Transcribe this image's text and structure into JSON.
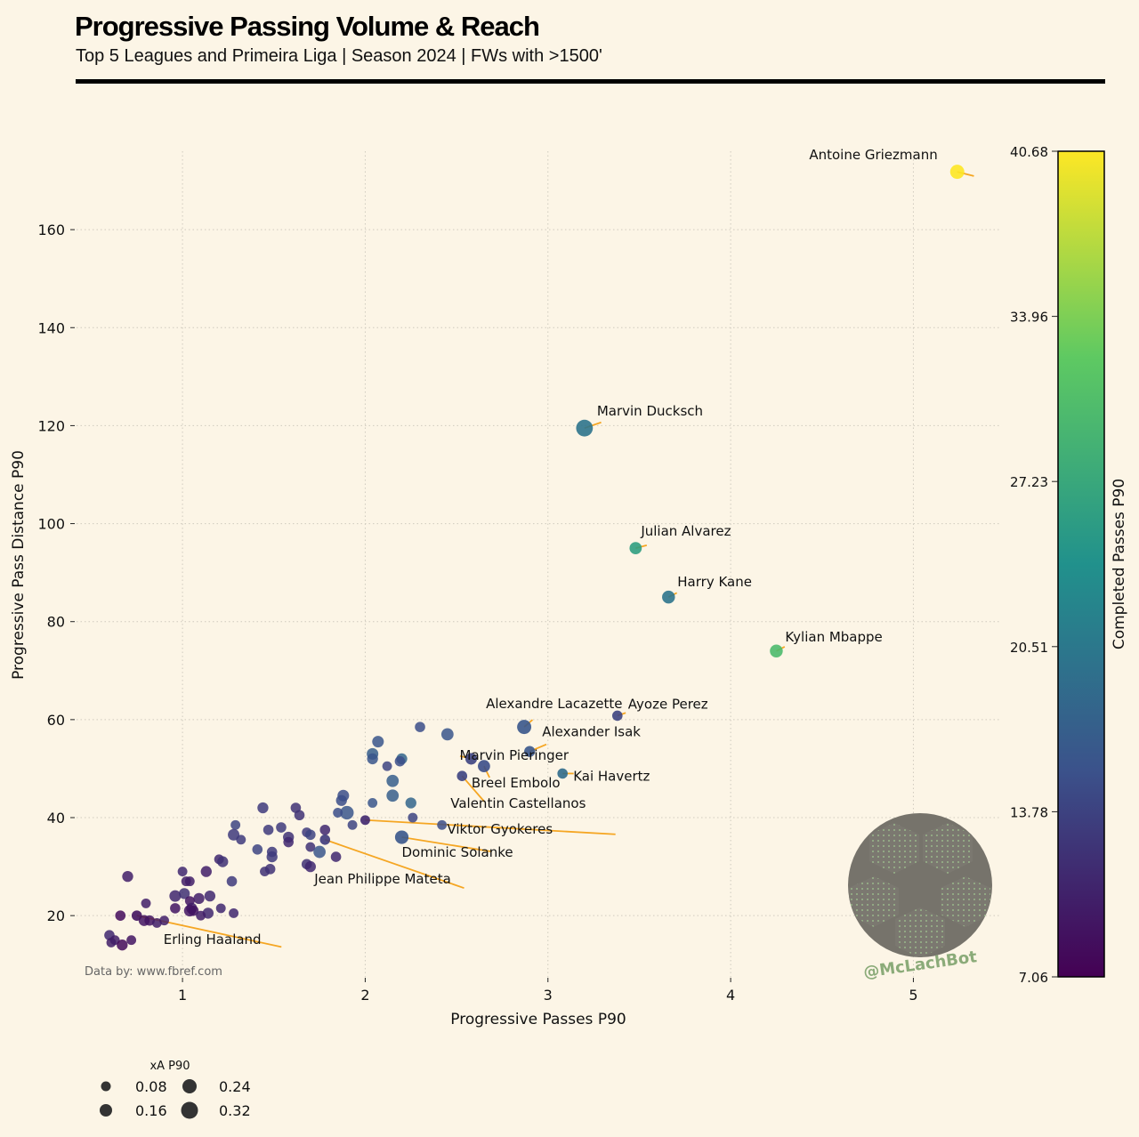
{
  "title": "Progressive Passing Volume & Reach",
  "subtitle": "Top 5 Leagues and Primeira Liga | Season 2024 | FWs with >1500'",
  "source_note": "Data by: www.fbref.com",
  "watermark": "@McLachBot",
  "colors": {
    "background": "#fcf5e6",
    "leader_line": "#f5a623",
    "colormap": [
      "#440154",
      "#3b528b",
      "#21918c",
      "#5ec962",
      "#fde725"
    ]
  },
  "chart_data": {
    "type": "scatter",
    "xlabel": "Progressive Passes P90",
    "ylabel": "Progressive Pass Distance P90",
    "xlim": [
      0.42,
      5.48
    ],
    "ylim": [
      7.5,
      176
    ],
    "xticks": [
      1,
      2,
      3,
      4,
      5
    ],
    "yticks": [
      20,
      40,
      60,
      80,
      100,
      120,
      140,
      160
    ],
    "grid": true,
    "colorbar": {
      "label": "Completed Passes P90",
      "min": 7.06,
      "max": 40.68,
      "ticks": [
        "40.68",
        "33.96",
        "27.23",
        "20.51",
        "13.78",
        "7.06"
      ]
    },
    "size_legend": {
      "title": "xA P90",
      "values": [
        "0.08",
        "0.16",
        "0.24",
        "0.32"
      ]
    },
    "labeled_points": [
      {
        "name": "Antoine Griezmann",
        "x": 5.24,
        "y": 171.8,
        "c": 40.68,
        "s": 0.22
      },
      {
        "name": "Marvin Ducksch",
        "x": 3.2,
        "y": 119.5,
        "c": 20.0,
        "s": 0.3
      },
      {
        "name": "Julian Alvarez",
        "x": 3.48,
        "y": 95.0,
        "c": 26.0,
        "s": 0.16
      },
      {
        "name": "Harry Kane",
        "x": 3.66,
        "y": 85.0,
        "c": 20.0,
        "s": 0.18
      },
      {
        "name": "Kylian Mbappe",
        "x": 4.25,
        "y": 74.0,
        "c": 30.0,
        "s": 0.18
      },
      {
        "name": "Alexandre Lacazette",
        "x": 2.87,
        "y": 58.5,
        "c": 16.0,
        "s": 0.22
      },
      {
        "name": "Ayoze Perez",
        "x": 3.38,
        "y": 60.8,
        "c": 14.0,
        "s": 0.1
      },
      {
        "name": "Alexander Isak",
        "x": 2.9,
        "y": 53.5,
        "c": 16.0,
        "s": 0.12
      },
      {
        "name": "Marvin Pieringer",
        "x": 2.58,
        "y": 52.0,
        "c": 14.0,
        "s": 0.14
      },
      {
        "name": "Kai Havertz",
        "x": 3.08,
        "y": 49.0,
        "c": 19.0,
        "s": 0.1
      },
      {
        "name": "Breel Embolo",
        "x": 2.65,
        "y": 50.5,
        "c": 15.0,
        "s": 0.16
      },
      {
        "name": "Valentin Castellanos",
        "x": 2.53,
        "y": 48.5,
        "c": 14.0,
        "s": 0.1
      },
      {
        "name": "Viktor Gyokeres",
        "x": 2.0,
        "y": 39.5,
        "c": 11.0,
        "s": 0.08
      },
      {
        "name": "Dominic Solanke",
        "x": 2.2,
        "y": 36.0,
        "c": 16.0,
        "s": 0.2
      },
      {
        "name": "Jean Philippe Mateta",
        "x": 1.78,
        "y": 35.5,
        "c": 13.0,
        "s": 0.1
      },
      {
        "name": "Erling Haaland",
        "x": 0.75,
        "y": 20.0,
        "c": 9.0,
        "s": 0.1
      }
    ],
    "points": [
      {
        "x": 2.3,
        "y": 58.5,
        "c": 15,
        "s": 0.1
      },
      {
        "x": 2.45,
        "y": 57.0,
        "c": 16,
        "s": 0.16
      },
      {
        "x": 2.07,
        "y": 55.5,
        "c": 16,
        "s": 0.14
      },
      {
        "x": 2.04,
        "y": 53.0,
        "c": 17,
        "s": 0.14
      },
      {
        "x": 2.04,
        "y": 52.0,
        "c": 16,
        "s": 0.12
      },
      {
        "x": 2.2,
        "y": 52.0,
        "c": 18,
        "s": 0.12
      },
      {
        "x": 2.19,
        "y": 51.5,
        "c": 15,
        "s": 0.1
      },
      {
        "x": 2.12,
        "y": 50.5,
        "c": 14,
        "s": 0.08
      },
      {
        "x": 2.15,
        "y": 47.5,
        "c": 17,
        "s": 0.16
      },
      {
        "x": 2.15,
        "y": 44.5,
        "c": 17,
        "s": 0.16
      },
      {
        "x": 2.25,
        "y": 43.0,
        "c": 18,
        "s": 0.12
      },
      {
        "x": 2.04,
        "y": 43.0,
        "c": 16,
        "s": 0.08
      },
      {
        "x": 1.88,
        "y": 44.5,
        "c": 15,
        "s": 0.14
      },
      {
        "x": 1.87,
        "y": 43.5,
        "c": 15,
        "s": 0.12
      },
      {
        "x": 1.9,
        "y": 41.0,
        "c": 16,
        "s": 0.2
      },
      {
        "x": 1.85,
        "y": 41.0,
        "c": 15,
        "s": 0.08
      },
      {
        "x": 2.26,
        "y": 40.0,
        "c": 14,
        "s": 0.08
      },
      {
        "x": 2.42,
        "y": 38.5,
        "c": 15,
        "s": 0.08
      },
      {
        "x": 1.93,
        "y": 38.5,
        "c": 14,
        "s": 0.08
      },
      {
        "x": 1.44,
        "y": 42.0,
        "c": 13,
        "s": 0.12
      },
      {
        "x": 1.62,
        "y": 42.0,
        "c": 12,
        "s": 0.1
      },
      {
        "x": 1.64,
        "y": 40.5,
        "c": 12,
        "s": 0.1
      },
      {
        "x": 1.29,
        "y": 38.5,
        "c": 14,
        "s": 0.08
      },
      {
        "x": 1.28,
        "y": 36.5,
        "c": 13,
        "s": 0.14
      },
      {
        "x": 1.32,
        "y": 35.5,
        "c": 13,
        "s": 0.08
      },
      {
        "x": 1.47,
        "y": 37.5,
        "c": 13,
        "s": 0.1
      },
      {
        "x": 1.54,
        "y": 38.0,
        "c": 13,
        "s": 0.1
      },
      {
        "x": 1.58,
        "y": 36.0,
        "c": 12,
        "s": 0.12
      },
      {
        "x": 1.58,
        "y": 35.0,
        "c": 11,
        "s": 0.1
      },
      {
        "x": 1.68,
        "y": 37.0,
        "c": 13,
        "s": 0.08
      },
      {
        "x": 1.7,
        "y": 36.5,
        "c": 14,
        "s": 0.1
      },
      {
        "x": 1.78,
        "y": 37.5,
        "c": 11,
        "s": 0.1
      },
      {
        "x": 1.41,
        "y": 33.5,
        "c": 14,
        "s": 0.1
      },
      {
        "x": 1.49,
        "y": 33.0,
        "c": 13,
        "s": 0.1
      },
      {
        "x": 1.49,
        "y": 32.0,
        "c": 13,
        "s": 0.12
      },
      {
        "x": 1.7,
        "y": 34.0,
        "c": 12,
        "s": 0.08
      },
      {
        "x": 1.75,
        "y": 33.0,
        "c": 16,
        "s": 0.16
      },
      {
        "x": 1.84,
        "y": 32.0,
        "c": 11,
        "s": 0.1
      },
      {
        "x": 1.68,
        "y": 30.5,
        "c": 12,
        "s": 0.1
      },
      {
        "x": 1.7,
        "y": 30.0,
        "c": 11,
        "s": 0.12
      },
      {
        "x": 1.48,
        "y": 29.5,
        "c": 12,
        "s": 0.1
      },
      {
        "x": 1.45,
        "y": 29.0,
        "c": 12,
        "s": 0.08
      },
      {
        "x": 1.2,
        "y": 31.5,
        "c": 11,
        "s": 0.08
      },
      {
        "x": 1.22,
        "y": 31.0,
        "c": 12,
        "s": 0.12
      },
      {
        "x": 1.13,
        "y": 29.0,
        "c": 10,
        "s": 0.12
      },
      {
        "x": 1.0,
        "y": 29.0,
        "c": 11,
        "s": 0.08
      },
      {
        "x": 1.27,
        "y": 27.0,
        "c": 13,
        "s": 0.1
      },
      {
        "x": 1.02,
        "y": 27.0,
        "c": 10,
        "s": 0.08
      },
      {
        "x": 1.04,
        "y": 27.0,
        "c": 10,
        "s": 0.08
      },
      {
        "x": 0.7,
        "y": 28.0,
        "c": 10,
        "s": 0.12
      },
      {
        "x": 0.96,
        "y": 24.0,
        "c": 11,
        "s": 0.14
      },
      {
        "x": 1.01,
        "y": 24.5,
        "c": 12,
        "s": 0.12
      },
      {
        "x": 1.09,
        "y": 23.5,
        "c": 10,
        "s": 0.12
      },
      {
        "x": 1.15,
        "y": 24.0,
        "c": 11,
        "s": 0.12
      },
      {
        "x": 1.04,
        "y": 23.0,
        "c": 9,
        "s": 0.08
      },
      {
        "x": 0.8,
        "y": 22.5,
        "c": 10,
        "s": 0.08
      },
      {
        "x": 0.96,
        "y": 21.5,
        "c": 9,
        "s": 0.1
      },
      {
        "x": 1.05,
        "y": 21.5,
        "c": 10,
        "s": 0.12
      },
      {
        "x": 1.04,
        "y": 21.0,
        "c": 9,
        "s": 0.14
      },
      {
        "x": 1.06,
        "y": 21.0,
        "c": 9,
        "s": 0.1
      },
      {
        "x": 1.14,
        "y": 20.5,
        "c": 11,
        "s": 0.12
      },
      {
        "x": 1.1,
        "y": 20.0,
        "c": 10,
        "s": 0.08
      },
      {
        "x": 1.21,
        "y": 21.5,
        "c": 11,
        "s": 0.08
      },
      {
        "x": 1.28,
        "y": 20.5,
        "c": 11,
        "s": 0.08
      },
      {
        "x": 0.66,
        "y": 20.0,
        "c": 8,
        "s": 0.1
      },
      {
        "x": 0.79,
        "y": 19.0,
        "c": 9,
        "s": 0.12
      },
      {
        "x": 0.82,
        "y": 19.0,
        "c": 9,
        "s": 0.1
      },
      {
        "x": 0.86,
        "y": 18.5,
        "c": 10,
        "s": 0.08
      },
      {
        "x": 0.9,
        "y": 19.0,
        "c": 10,
        "s": 0.08
      },
      {
        "x": 0.6,
        "y": 16.0,
        "c": 11,
        "s": 0.1
      },
      {
        "x": 0.61,
        "y": 14.5,
        "c": 10,
        "s": 0.08
      },
      {
        "x": 0.63,
        "y": 15.0,
        "c": 10,
        "s": 0.08
      },
      {
        "x": 0.67,
        "y": 14.0,
        "c": 8,
        "s": 0.12
      },
      {
        "x": 0.72,
        "y": 15.0,
        "c": 9,
        "s": 0.08
      }
    ]
  }
}
